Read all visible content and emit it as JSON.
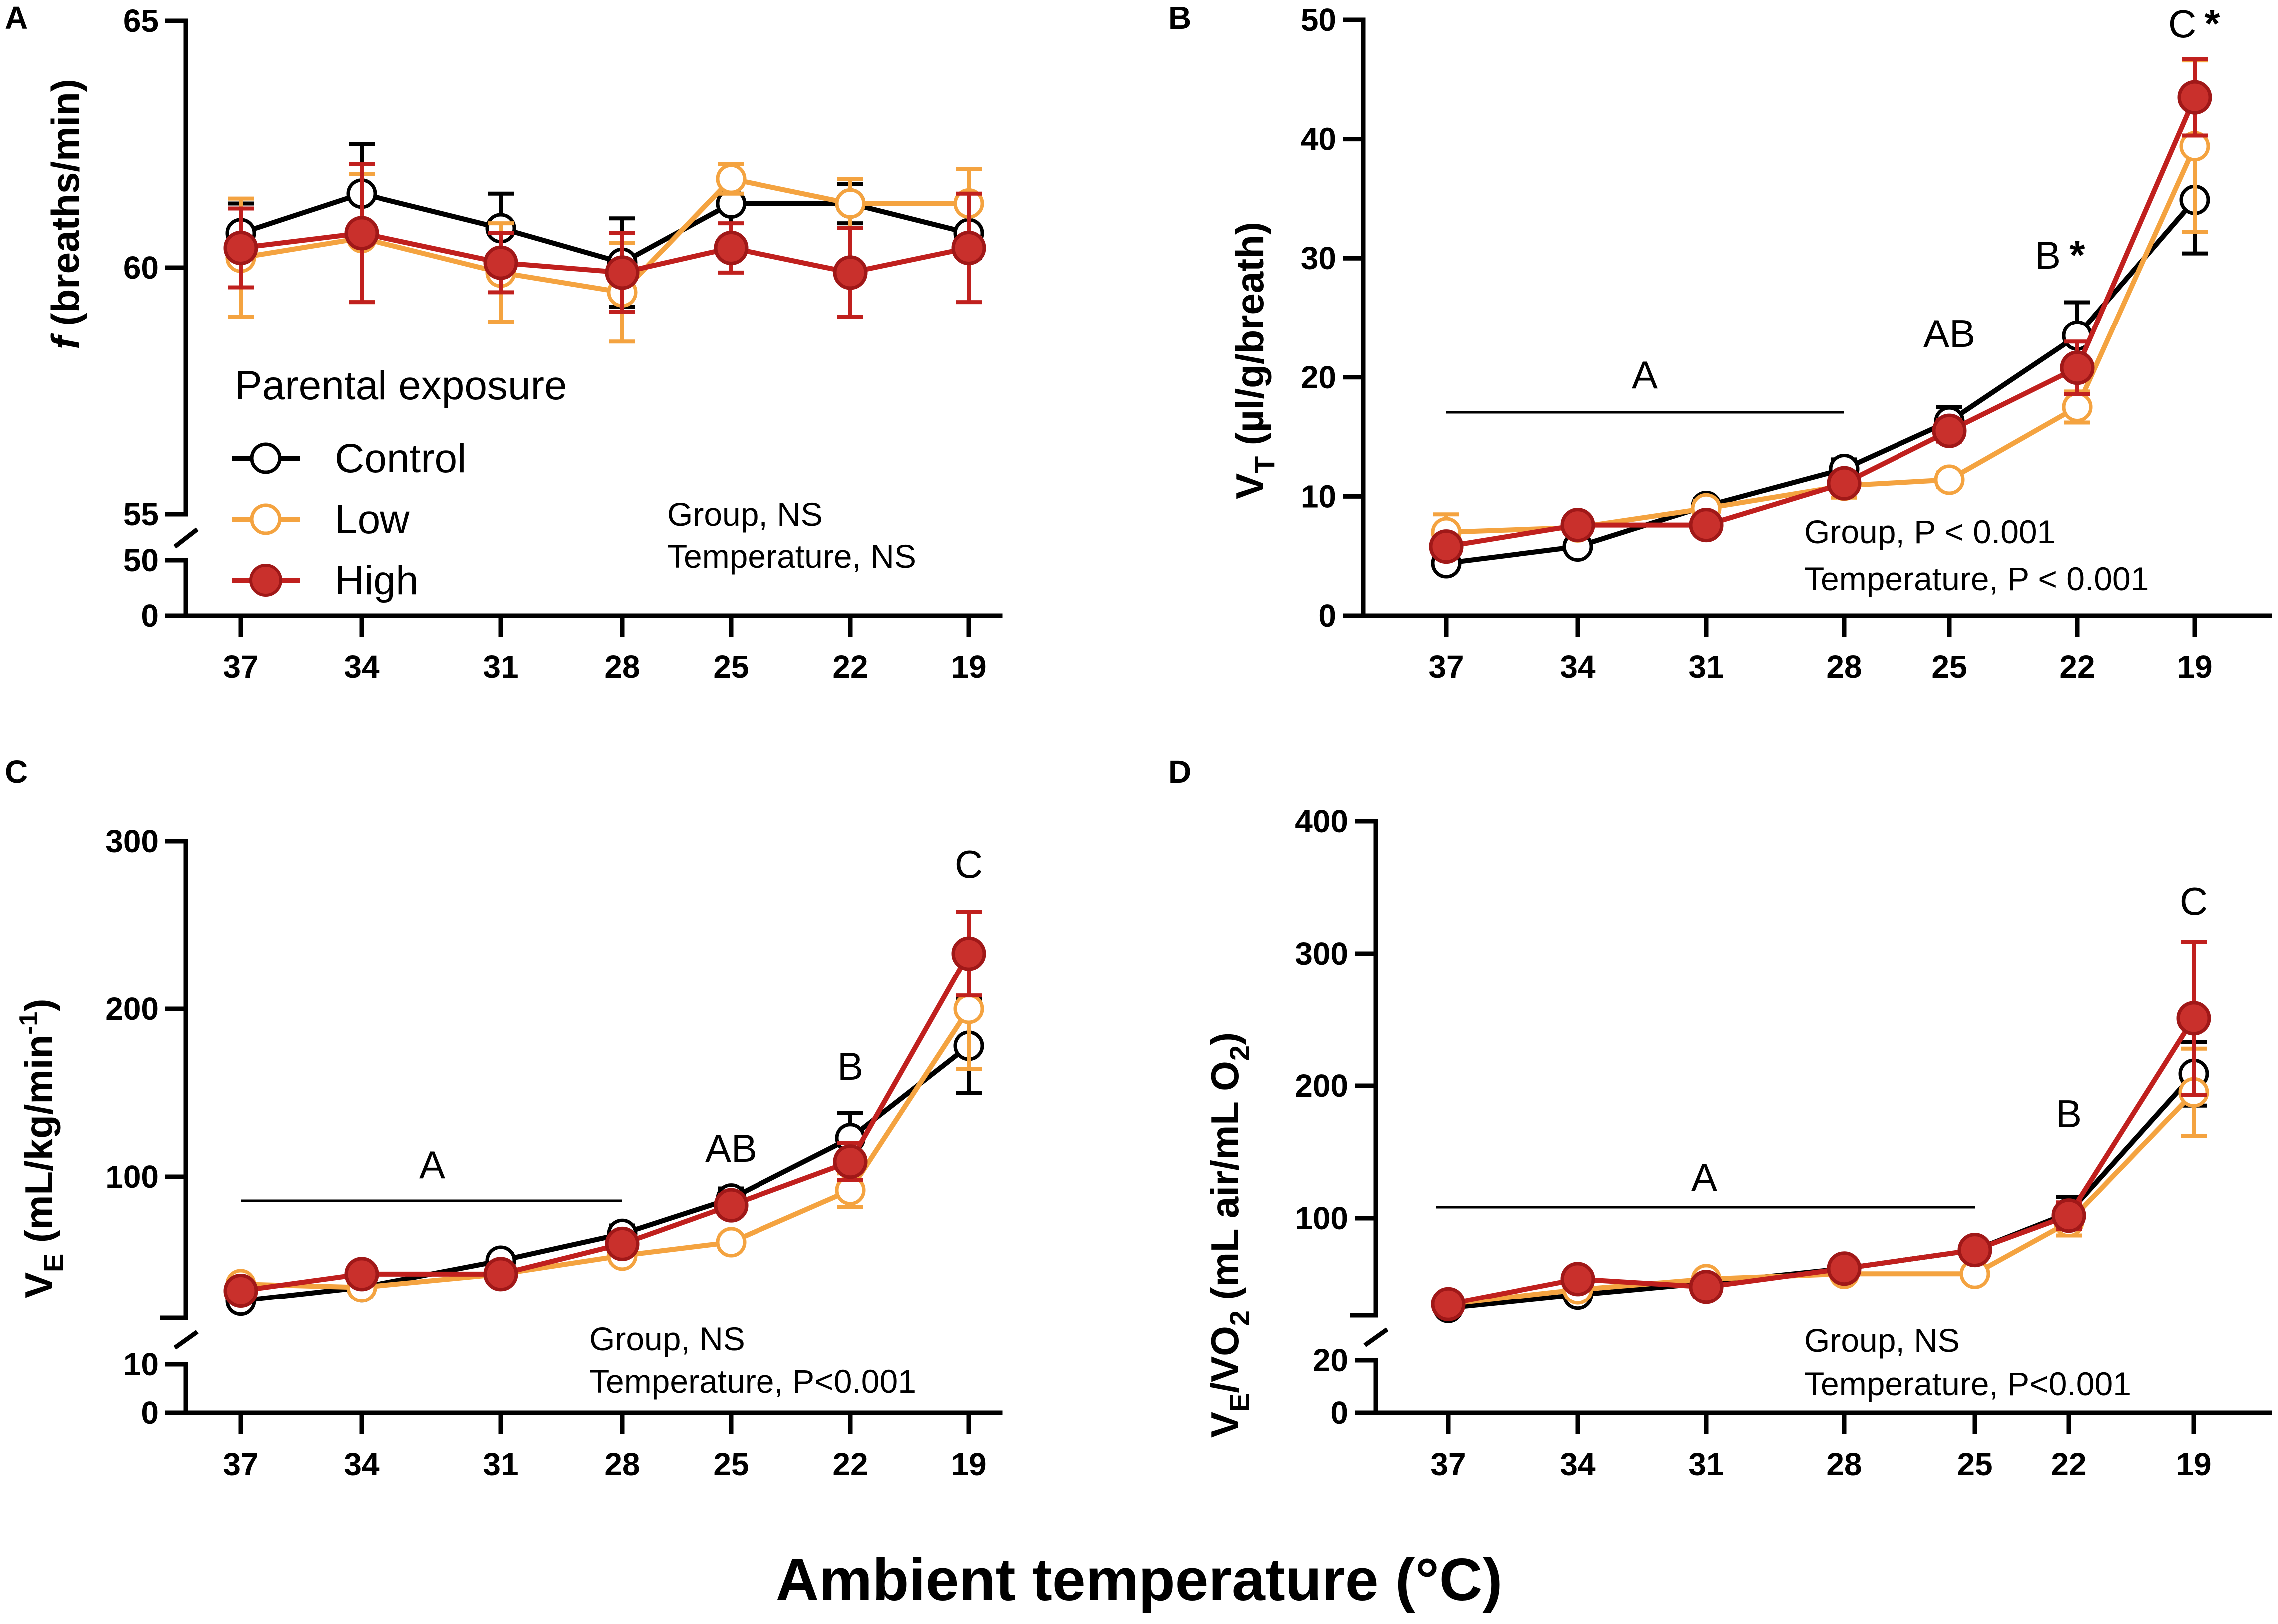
{
  "figure": {
    "x_title": "Ambient temperature (°C)",
    "legend": {
      "title": "Parental exposure",
      "entries": [
        "Control",
        "Low",
        "High"
      ]
    },
    "colors": {
      "Control": "#000000",
      "Low": "#F4A340",
      "High": "#C0201E",
      "High_fill": "#C9302C",
      "Low_fill": "#FFFFFF",
      "Control_fill": "#FFFFFF"
    }
  },
  "chart_data": [
    {
      "panel": "A",
      "type": "line",
      "ylabel_main": "f",
      "ylabel_rest": " (breaths/min)",
      "categories": [
        "37",
        "34",
        "31",
        "28",
        "25",
        "22",
        "19"
      ],
      "ylim_upper": [
        55,
        65
      ],
      "ylim_lower": [
        0,
        50
      ],
      "yticks_upper": [
        "65",
        "60",
        "55"
      ],
      "yticks_lower": [
        "50",
        "0"
      ],
      "annotations": [
        "Group, NS",
        "Temperature, NS"
      ],
      "letters": [],
      "series": [
        {
          "name": "Control",
          "values": [
            60.7,
            61.5,
            60.8,
            60.1,
            61.3,
            61.3,
            60.7
          ],
          "err": [
            0.6,
            1.0,
            0.7,
            0.9,
            0.8,
            0.4,
            0.5
          ]
        },
        {
          "name": "Low",
          "values": [
            60.2,
            60.6,
            59.9,
            59.5,
            61.8,
            61.3,
            61.3
          ],
          "err": [
            1.2,
            1.3,
            1.0,
            1.0,
            0.3,
            0.5,
            0.7
          ]
        },
        {
          "name": "High",
          "values": [
            60.4,
            60.7,
            60.1,
            59.9,
            60.4,
            59.9,
            60.4
          ],
          "err": [
            0.8,
            1.4,
            0.6,
            0.8,
            0.5,
            0.9,
            1.1
          ]
        }
      ]
    },
    {
      "panel": "B",
      "type": "line",
      "ylabel_main": "V",
      "ylabel_sub": "T",
      "ylabel_rest": " (µl/g/breath)",
      "categories": [
        "37",
        "34",
        "31",
        "28",
        "25",
        "22",
        "19"
      ],
      "ylim": [
        0,
        50
      ],
      "yticks": [
        "50",
        "40",
        "30",
        "20",
        "10",
        "0"
      ],
      "annotations": [
        "Group, P < 0.001",
        "Temperature, P < 0.001"
      ],
      "letters": [
        "A",
        "AB",
        "B",
        "C"
      ],
      "stars": [
        "*",
        "*"
      ],
      "series": [
        {
          "name": "Control",
          "values": [
            4.4,
            5.8,
            9.2,
            12.3,
            16.3,
            23.5,
            34.9
          ],
          "err": [
            0.5,
            0.5,
            0.6,
            0.8,
            1.2,
            2.8,
            4.5
          ]
        },
        {
          "name": "Low",
          "values": [
            7.0,
            7.4,
            9.0,
            10.9,
            11.4,
            17.5,
            39.4
          ],
          "err": [
            1.5,
            0.6,
            0.6,
            1.0,
            0.6,
            1.3,
            7.2
          ]
        },
        {
          "name": "High",
          "values": [
            5.8,
            7.6,
            7.6,
            11.1,
            15.5,
            20.8,
            43.5
          ],
          "err": [
            0.8,
            0.6,
            0.5,
            0.8,
            0.9,
            2.2,
            3.2
          ]
        }
      ]
    },
    {
      "panel": "C",
      "type": "line",
      "ylabel_main": "V",
      "ylabel_sub": "E",
      "ylabel_rest": " (mL/kg/min",
      "ylabel_sup": "-1",
      "ylabel_end": ")",
      "categories": [
        "37",
        "34",
        "31",
        "28",
        "25",
        "22",
        "19"
      ],
      "ylim_upper": [
        15,
        300
      ],
      "ylim_lower": [
        0,
        10
      ],
      "yticks_upper": [
        "300",
        "200",
        "100"
      ],
      "yticks_lower": [
        "10",
        "0"
      ],
      "annotations": [
        "Group, NS",
        "Temperature, P<0.001"
      ],
      "letters": [
        "A",
        "AB",
        "B",
        "C"
      ],
      "series": [
        {
          "name": "Control",
          "values": [
            26,
            34,
            50,
            66,
            87,
            123,
            178
          ],
          "err": [
            2,
            3,
            4,
            5,
            6,
            15,
            28
          ]
        },
        {
          "name": "Low",
          "values": [
            36,
            34,
            42,
            53,
            61,
            92,
            200
          ],
          "err": [
            3,
            3,
            3,
            4,
            4,
            10,
            36
          ]
        },
        {
          "name": "High",
          "values": [
            32,
            42,
            42,
            60,
            83,
            109,
            233
          ],
          "err": [
            3,
            3,
            3,
            5,
            6,
            11,
            25
          ]
        }
      ]
    },
    {
      "panel": "D",
      "type": "line",
      "ylabel_main": "V",
      "ylabel_sub": "E",
      "ylabel_rest": "/VO",
      "ylabel_sub2": "2",
      "ylabel_rest2": " (mL air/mL O",
      "ylabel_sub3": "2",
      "ylabel_end": ")",
      "categories": [
        "37",
        "34",
        "31",
        "28",
        "25",
        "22",
        "19"
      ],
      "ylim_upper": [
        25,
        400
      ],
      "ylim_lower": [
        0,
        20
      ],
      "yticks_upper": [
        "400",
        "300",
        "200",
        "100"
      ],
      "yticks_lower": [
        "20",
        "0"
      ],
      "annotations": [
        "Group, NS",
        "Temperature, P<0.001"
      ],
      "letters": [
        "A",
        "B",
        "C"
      ],
      "series": [
        {
          "name": "Control",
          "values": [
            32,
            42,
            51,
            62,
            76,
            104,
            209
          ],
          "err": [
            2,
            3,
            3,
            4,
            4,
            12,
            24
          ]
        },
        {
          "name": "Low",
          "values": [
            35,
            46,
            54,
            58,
            58,
            97,
            195
          ],
          "err": [
            3,
            3,
            3,
            4,
            4,
            10,
            33
          ]
        },
        {
          "name": "High",
          "values": [
            35,
            54,
            48,
            62,
            76,
            102,
            251
          ],
          "err": [
            3,
            4,
            3,
            4,
            4,
            10,
            58
          ]
        }
      ]
    }
  ]
}
